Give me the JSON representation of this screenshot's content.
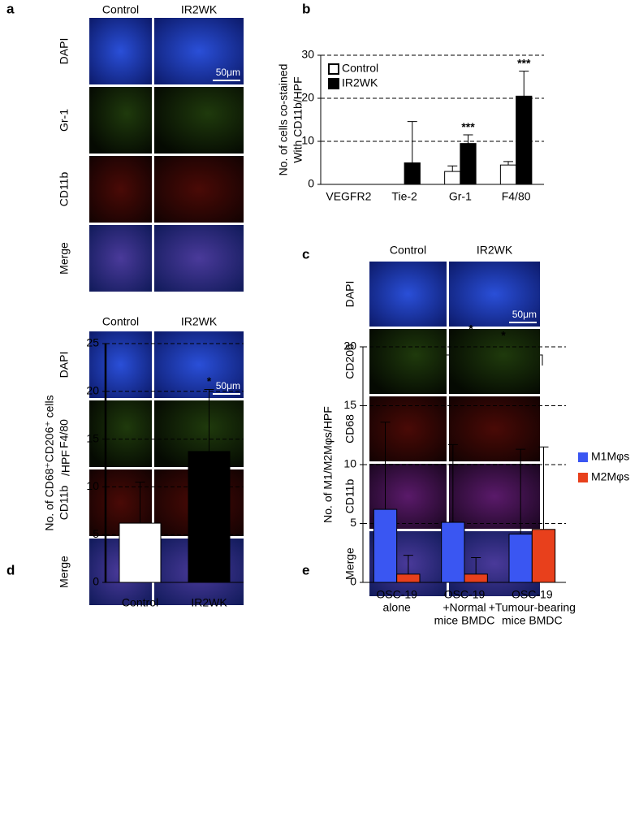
{
  "panel_labels": [
    "a",
    "b",
    "c",
    "d",
    "e"
  ],
  "micrographs": [
    {
      "columns": [
        "Control",
        "IR2WK"
      ],
      "rows": [
        "DAPI",
        "Gr-1",
        "CD11b",
        "Merge"
      ],
      "scale_bar": "50μm"
    },
    {
      "columns": [
        "Control",
        "IR2WK"
      ],
      "rows": [
        "DAPI",
        "F4/80",
        "CD11b",
        "Merge"
      ],
      "scale_bar": "50μm"
    },
    {
      "columns": [
        "Control",
        "IR2WK"
      ],
      "rows": [
        "DAPI",
        "CD206",
        "CD68",
        "CD11b",
        "Merge"
      ],
      "scale_bar": "50μm"
    }
  ],
  "chart_data": [
    {
      "type": "bar",
      "ylabel": [
        "No. of cells co-stained",
        "With CD11b/HPF"
      ],
      "categories": [
        "VEGFR2",
        "Tie-2",
        "Gr-1",
        "F4/80"
      ],
      "series": [
        {
          "name": "Control",
          "color": "#ffffff",
          "values": [
            0,
            0,
            3,
            4.5
          ],
          "errors": [
            null,
            null,
            1.3,
            0.8
          ]
        },
        {
          "name": "IR2WK",
          "color": "#000000",
          "values": [
            0,
            5,
            9.5,
            20.5
          ],
          "errors": [
            null,
            9.6,
            2,
            5.8
          ]
        }
      ],
      "ylim": [
        0,
        30
      ],
      "yticks": [
        0,
        10,
        20,
        30
      ],
      "grid": true,
      "legend": "top-left",
      "annotations": [
        "***",
        "***"
      ]
    },
    {
      "type": "bar",
      "ylabel": [
        "No. of CD68⁺CD206⁺ cells",
        "/HPF"
      ],
      "categories": [
        "Control",
        "IR2WK"
      ],
      "colors": [
        "#ffffff",
        "#000000"
      ],
      "values": [
        6.2,
        13.7
      ],
      "errors": [
        4.3,
        6.5
      ],
      "ylim": [
        0,
        25
      ],
      "yticks": [
        0,
        5,
        10,
        15,
        20,
        25
      ],
      "grid": true,
      "annotations": [
        "*"
      ]
    },
    {
      "type": "bar",
      "ylabel": [
        "No. of M1/M2Mφs/HPF"
      ],
      "categories": [
        [
          "OSC-19",
          "alone"
        ],
        [
          "OSC-19",
          "+Normal",
          "mice BMDC"
        ],
        [
          "OSC-19",
          "+Tumour-bearing",
          "mice BMDC"
        ]
      ],
      "series": [
        {
          "name": "M1Mφs",
          "color": "#3a56f2",
          "values": [
            6.2,
            5.1,
            4.1
          ],
          "errors": [
            7.4,
            6.6,
            7.2
          ]
        },
        {
          "name": "M2Mφs",
          "color": "#e8401c",
          "values": [
            0.7,
            0.7,
            4.5
          ],
          "errors": [
            1.6,
            1.4,
            7.0
          ]
        }
      ],
      "ylim": [
        0,
        20
      ],
      "yticks": [
        0,
        5,
        10,
        15,
        20
      ],
      "grid": true,
      "legend": "right",
      "annotations": [
        "*",
        "*"
      ]
    }
  ]
}
